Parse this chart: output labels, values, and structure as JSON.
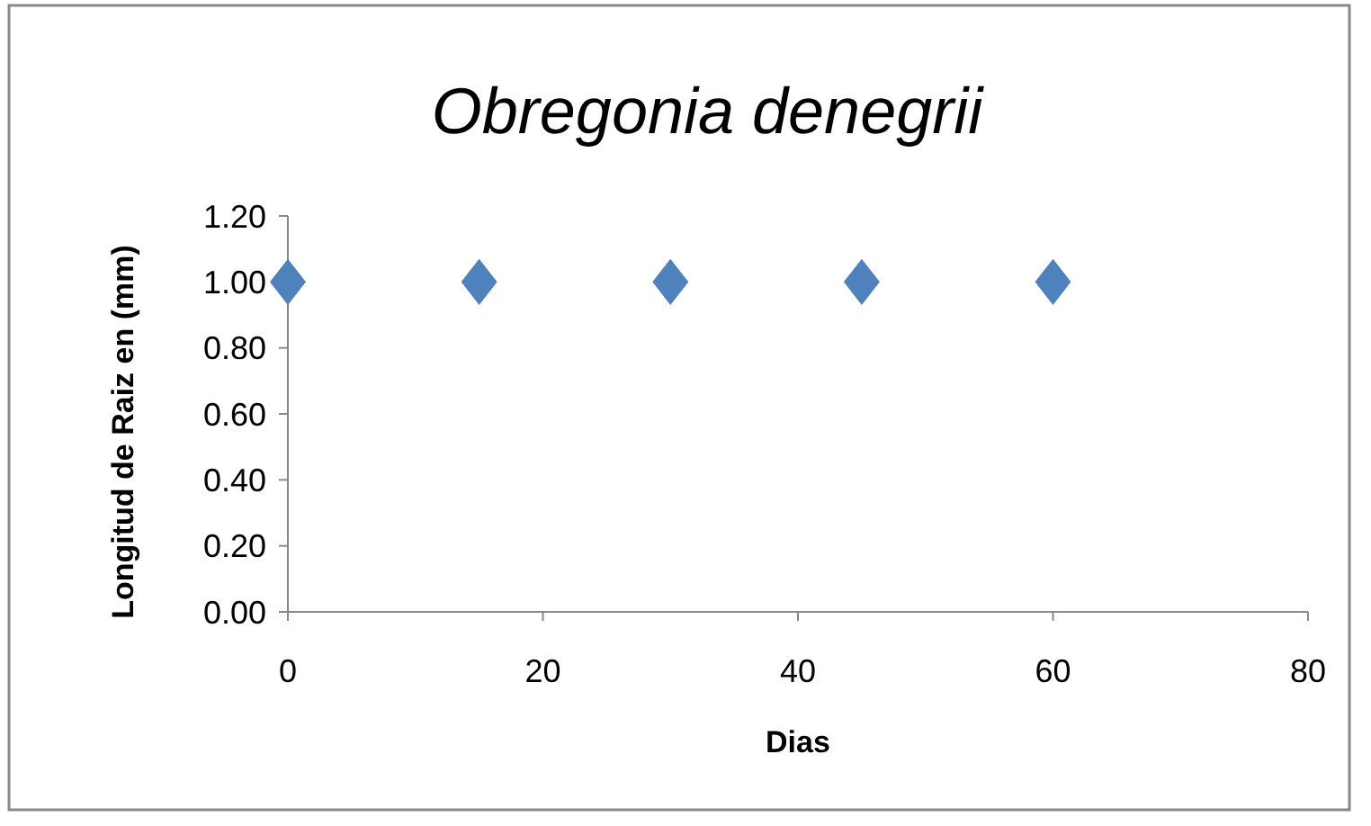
{
  "chart_data": {
    "type": "scatter",
    "title": "Obregonia denegrii",
    "xlabel": "Dias",
    "ylabel": "Longitud de Raiz en (mm)",
    "x": [
      0,
      15,
      30,
      45,
      60
    ],
    "series": [
      {
        "color": "#4f81bd",
        "values": [
          1,
          1,
          1,
          1,
          1
        ]
      }
    ],
    "xlim": [
      0,
      80
    ],
    "xticks": [
      0,
      20,
      40,
      60,
      80
    ],
    "ylim": [
      0,
      1.2
    ],
    "yticks": [
      {
        "value": 0,
        "label": "0.00"
      },
      {
        "value": 0.2,
        "label": "0.20"
      },
      {
        "value": 0.4,
        "label": "0.40"
      },
      {
        "value": 0.6,
        "label": "0.60"
      },
      {
        "value": 0.8,
        "label": "0.80"
      },
      {
        "value": 1,
        "label": "1.00"
      },
      {
        "value": 1.2,
        "label": "1.20"
      }
    ],
    "marker": "diamond"
  }
}
